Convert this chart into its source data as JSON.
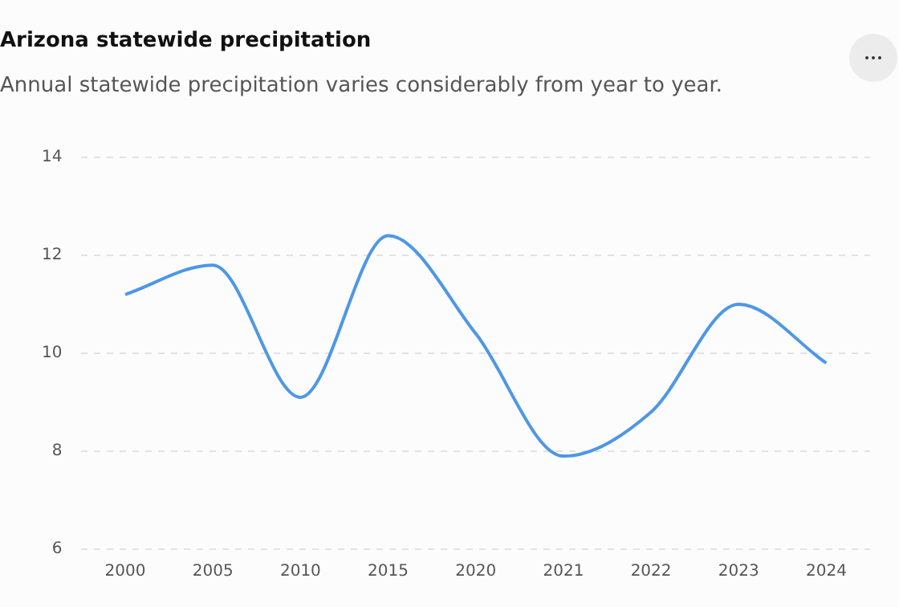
{
  "chart_data": {
    "type": "line",
    "title": "Arizona statewide precipitation",
    "subtitle": "Annual statewide precipitation varies considerably from year to year.",
    "categories": [
      "2000",
      "2005",
      "2010",
      "2015",
      "2020",
      "2021",
      "2022",
      "2023",
      "2024"
    ],
    "series": [
      {
        "color": "#4e97e6",
        "values": [
          11.2,
          11.8,
          9.1,
          12.4,
          10.4,
          7.9,
          8.8,
          11.0,
          9.8
        ]
      }
    ],
    "ylim": [
      6,
      14
    ],
    "yticks": [
      6,
      8,
      10,
      12,
      14
    ],
    "grid": "y",
    "legend": false,
    "marker": "none",
    "line_style": "solid"
  }
}
